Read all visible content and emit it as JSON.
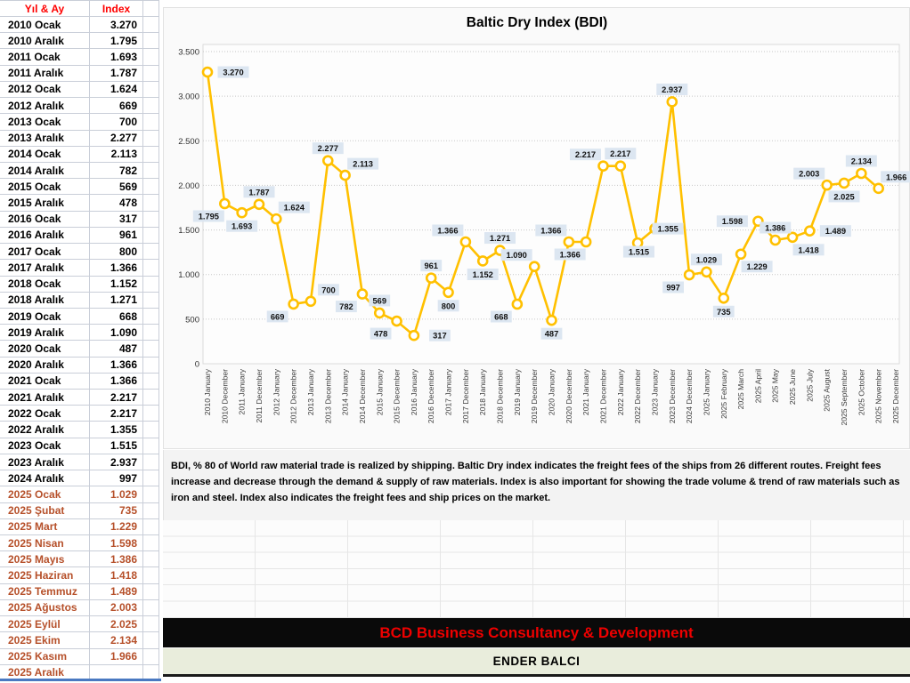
{
  "table": {
    "headers": {
      "year_month": "Yıl & Ay",
      "index": "Index"
    },
    "rows": [
      {
        "y": "2010 Ocak",
        "v": "3.270",
        "hl": false
      },
      {
        "y": "2010 Aralık",
        "v": "1.795",
        "hl": false
      },
      {
        "y": "2011 Ocak",
        "v": "1.693",
        "hl": false
      },
      {
        "y": "2011 Aralık",
        "v": "1.787",
        "hl": false
      },
      {
        "y": "2012 Ocak",
        "v": "1.624",
        "hl": false
      },
      {
        "y": "2012 Aralık",
        "v": "669",
        "hl": false
      },
      {
        "y": "2013 Ocak",
        "v": "700",
        "hl": false
      },
      {
        "y": "2013 Aralık",
        "v": "2.277",
        "hl": false
      },
      {
        "y": "2014 Ocak",
        "v": "2.113",
        "hl": false
      },
      {
        "y": "2014 Aralık",
        "v": "782",
        "hl": false
      },
      {
        "y": "2015 Ocak",
        "v": "569",
        "hl": false
      },
      {
        "y": "2015 Aralık",
        "v": "478",
        "hl": false
      },
      {
        "y": "2016 Ocak",
        "v": "317",
        "hl": false
      },
      {
        "y": "2016 Aralık",
        "v": "961",
        "hl": false
      },
      {
        "y": "2017 Ocak",
        "v": "800",
        "hl": false
      },
      {
        "y": "2017 Aralık",
        "v": "1.366",
        "hl": false
      },
      {
        "y": "2018 Ocak",
        "v": "1.152",
        "hl": false
      },
      {
        "y": "2018 Aralık",
        "v": "1.271",
        "hl": false
      },
      {
        "y": "2019 Ocak",
        "v": "668",
        "hl": false
      },
      {
        "y": "2019 Aralık",
        "v": "1.090",
        "hl": false
      },
      {
        "y": "2020 Ocak",
        "v": "487",
        "hl": false
      },
      {
        "y": "2020 Aralık",
        "v": "1.366",
        "hl": false
      },
      {
        "y": "2021 Ocak",
        "v": "1.366",
        "hl": false
      },
      {
        "y": "2021 Aralık",
        "v": "2.217",
        "hl": false
      },
      {
        "y": "2022 Ocak",
        "v": "2.217",
        "hl": false
      },
      {
        "y": "2022 Aralık",
        "v": "1.355",
        "hl": false
      },
      {
        "y": "2023 Ocak",
        "v": "1.515",
        "hl": false
      },
      {
        "y": "2023 Aralık",
        "v": "2.937",
        "hl": false
      },
      {
        "y": "2024 Aralık",
        "v": "997",
        "hl": false
      },
      {
        "y": "2025 Ocak",
        "v": "1.029",
        "hl": true
      },
      {
        "y": "2025 Şubat",
        "v": "735",
        "hl": true
      },
      {
        "y": "2025 Mart",
        "v": "1.229",
        "hl": true
      },
      {
        "y": "2025 Nisan",
        "v": "1.598",
        "hl": true
      },
      {
        "y": "2025 Mayıs",
        "v": "1.386",
        "hl": true
      },
      {
        "y": "2025 Haziran",
        "v": "1.418",
        "hl": true
      },
      {
        "y": "2025 Temmuz",
        "v": "1.489",
        "hl": true
      },
      {
        "y": "2025 Ağustos",
        "v": "2.003",
        "hl": true
      },
      {
        "y": "2025 Eylül",
        "v": "2.025",
        "hl": true
      },
      {
        "y": "2025 Ekim",
        "v": "2.134",
        "hl": true
      },
      {
        "y": "2025 Kasım",
        "v": "1.966",
        "hl": true
      },
      {
        "y": "2025 Aralık",
        "v": "",
        "hl": true
      }
    ]
  },
  "chart_data": {
    "type": "line",
    "title": "Baltic Dry Index (BDI)",
    "x": [
      "2010 January",
      "2010 December",
      "2011 January",
      "2011 December",
      "2012 January",
      "2012 December",
      "2013 January",
      "2013 December",
      "2014 January",
      "2014 December",
      "2015 January",
      "2015 December",
      "2016 January",
      "2016 December",
      "2017 January",
      "2017 December",
      "2018 January",
      "2018 December",
      "2019 January",
      "2019 December",
      "2020 January",
      "2020 December",
      "2021 January",
      "2021 December",
      "2022 January",
      "2022 December",
      "2023 January",
      "2023 December",
      "2024 December",
      "2025 January",
      "2025 February",
      "2025 March",
      "2025 April",
      "2025 May",
      "2025 June",
      "2025 July",
      "2025 August",
      "2025 September",
      "2025 October",
      "2025 November",
      "2025 December"
    ],
    "values": [
      3270,
      1795,
      1693,
      1787,
      1624,
      669,
      700,
      2277,
      2113,
      782,
      569,
      478,
      317,
      961,
      800,
      1366,
      1152,
      1271,
      668,
      1090,
      487,
      1366,
      1366,
      2217,
      2217,
      1355,
      1515,
      2937,
      997,
      1029,
      735,
      1229,
      1598,
      1386,
      1418,
      1489,
      2003,
      2025,
      2134,
      1966,
      null
    ],
    "point_labels": [
      "3.270",
      "1.795",
      "1.693",
      "1.787",
      "1.624",
      "669",
      "700",
      "2.277",
      "2.113",
      "782",
      "569",
      "478",
      "317",
      "961",
      "800",
      "1.366",
      "1.152",
      "1.271",
      "668",
      "1.090",
      "487",
      "1.366",
      "1.366",
      "2.217",
      "2.217",
      "1.355",
      "1.515",
      "2.937",
      "997",
      "1.029",
      "735",
      "1.229",
      "1.598",
      "1.386",
      "1.418",
      "1.489",
      "2.003",
      "2.025",
      "2.134",
      "1.966",
      ""
    ],
    "label_placements": [
      "right",
      "below-left",
      "below",
      "above",
      "above-right",
      "below-left",
      "above-right",
      "above",
      "above-right",
      "below-left",
      "above",
      "below-left",
      "right",
      "above",
      "below",
      "above-left",
      "below",
      "above",
      "below-left",
      "above-left",
      "below",
      "above-left",
      "below-left",
      "above-left",
      "above",
      [
        34,
        -16
      ],
      [
        -18,
        26
      ],
      "above",
      "below-left",
      "above",
      "below",
      "below-right",
      "left",
      "above",
      "below-right",
      "right",
      "above-left",
      "below",
      "above",
      "above-right",
      "above"
    ],
    "ylim": [
      0,
      3500
    ],
    "ytick_labels": [
      "0",
      "500",
      "1.000",
      "1.500",
      "2.000",
      "2.500",
      "3.000",
      "3.500"
    ],
    "xlabel": "",
    "ylabel": "",
    "grid": true,
    "legend": "none",
    "line_color": "#FFC000",
    "marker_fill": "#FFFFFF",
    "label_bg": "#DCE6F1",
    "plot_bg": "#FDFDFD"
  },
  "description": {
    "text": "BDI, % 80 of World raw material trade is realized by shipping. Baltic Dry index indicates the freight fees of the ships from 26 different routes. Freight fees increase and decrease through the demand & supply of raw materials. Index is also important for showing the trade volume & trend of raw materials such as iron and steel. Index also indicates the freight fees and ship prices on the market."
  },
  "footer": {
    "company": "BCD Business Consultancy & Development",
    "author": "ENDER BALCI"
  },
  "colors": {
    "header_red": "#FF0000",
    "highlight_2025": "#B6502A",
    "banner_text_red": "#EE0000",
    "banner_black_bg": "#0A0A0A",
    "banner_cream_bg": "#E9EDDC",
    "chart_gold": "#FFC000"
  }
}
